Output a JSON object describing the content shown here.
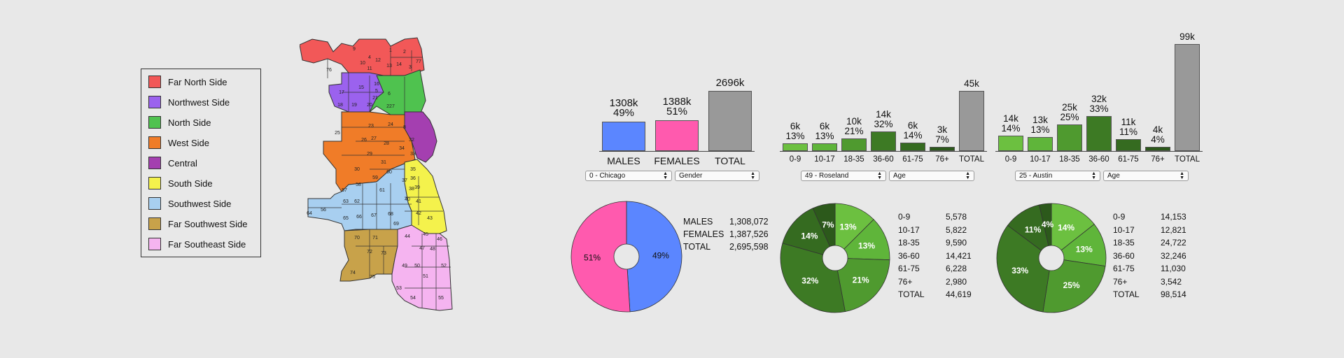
{
  "legend": {
    "items": [
      {
        "label": "Far North Side",
        "color": "#f25858"
      },
      {
        "label": "Northwest Side",
        "color": "#9b62ee"
      },
      {
        "label": "North Side",
        "color": "#4fc24f"
      },
      {
        "label": "West Side",
        "color": "#f07c28"
      },
      {
        "label": "Central",
        "color": "#a43fb0"
      },
      {
        "label": "South Side",
        "color": "#f4f24c"
      },
      {
        "label": "Southwest Side",
        "color": "#a8cff0"
      },
      {
        "label": "Far Southwest Side",
        "color": "#c8a24a"
      },
      {
        "label": "Far Southeast Side",
        "color": "#f5b4f0"
      }
    ]
  },
  "map": {
    "numbers": [
      "1",
      "2",
      "3",
      "4",
      "5",
      "6",
      "7",
      "8",
      "9",
      "10",
      "11",
      "12",
      "13",
      "14",
      "15",
      "16",
      "17",
      "18",
      "19",
      "20",
      "21",
      "22",
      "23",
      "24",
      "25",
      "26",
      "27",
      "28",
      "29",
      "30",
      "31",
      "32",
      "33",
      "34",
      "35",
      "36",
      "37",
      "38",
      "39",
      "40",
      "41",
      "42",
      "43",
      "44",
      "45",
      "46",
      "47",
      "48",
      "49",
      "50",
      "51",
      "52",
      "53",
      "54",
      "55",
      "56",
      "57",
      "58",
      "59",
      "60",
      "61",
      "62",
      "63",
      "64",
      "65",
      "66",
      "67",
      "68",
      "69",
      "70",
      "71",
      "72",
      "73",
      "74",
      "75",
      "76",
      "77"
    ]
  },
  "panels": [
    {
      "select_area": "0 - Chicago",
      "select_type": "Gender",
      "bars": [
        {
          "cat": "MALES",
          "value_label": "1308k",
          "pct": "49%",
          "value": 1308,
          "color": "#5b86ff"
        },
        {
          "cat": "FEMALES",
          "value_label": "1388k",
          "pct": "51%",
          "value": 1388,
          "color": "#ff5aae"
        },
        {
          "cat": "TOTAL",
          "value_label": "2696k",
          "pct": "",
          "value": 2696,
          "color": "#999999"
        }
      ],
      "table": [
        {
          "k": "MALES",
          "v": "1,308,072"
        },
        {
          "k": "FEMALES",
          "v": "1,387,526"
        },
        {
          "k": "TOTAL",
          "v": "2,695,598"
        }
      ],
      "pie": [
        {
          "value": 49,
          "label": "49%",
          "color": "#5b86ff"
        },
        {
          "value": 51,
          "label": "51%",
          "color": "#ff5aae"
        }
      ]
    },
    {
      "select_area": "49 - Roseland",
      "select_type": "Age",
      "bars": [
        {
          "cat": "0-9",
          "value_label": "6k",
          "pct": "13%",
          "value": 5578,
          "color": "#6cc040"
        },
        {
          "cat": "10-17",
          "value_label": "6k",
          "pct": "13%",
          "value": 5822,
          "color": "#5fb53a"
        },
        {
          "cat": "18-35",
          "value_label": "10k",
          "pct": "21%",
          "value": 9590,
          "color": "#4f9a2f"
        },
        {
          "cat": "36-60",
          "value_label": "14k",
          "pct": "32%",
          "value": 14421,
          "color": "#3d7a24"
        },
        {
          "cat": "61-75",
          "value_label": "6k",
          "pct": "14%",
          "value": 6228,
          "color": "#356b20"
        },
        {
          "cat": "76+",
          "value_label": "3k",
          "pct": "7%",
          "value": 2980,
          "color": "#2c591b"
        },
        {
          "cat": "TOTAL",
          "value_label": "45k",
          "pct": "",
          "value": 44619,
          "color": "#999999"
        }
      ],
      "table": [
        {
          "k": "0-9",
          "v": "5,578"
        },
        {
          "k": "10-17",
          "v": "5,822"
        },
        {
          "k": "18-35",
          "v": "9,590"
        },
        {
          "k": "36-60",
          "v": "14,421"
        },
        {
          "k": "61-75",
          "v": "6,228"
        },
        {
          "k": "76+",
          "v": "2,980"
        },
        {
          "k": "TOTAL",
          "v": "44,619"
        }
      ],
      "pie": [
        {
          "value": 5578,
          "label": "13%",
          "color": "#6cc040"
        },
        {
          "value": 5822,
          "label": "13%",
          "color": "#5fb53a"
        },
        {
          "value": 9590,
          "label": "21%",
          "color": "#4f9a2f"
        },
        {
          "value": 14421,
          "label": "32%",
          "color": "#3d7a24"
        },
        {
          "value": 6228,
          "label": "14%",
          "color": "#356b20"
        },
        {
          "value": 2980,
          "label": "7%",
          "color": "#2c591b"
        }
      ]
    },
    {
      "select_area": "25 - Austin",
      "select_type": "Age",
      "bars": [
        {
          "cat": "0-9",
          "value_label": "14k",
          "pct": "14%",
          "value": 14153,
          "color": "#6cc040"
        },
        {
          "cat": "10-17",
          "value_label": "13k",
          "pct": "13%",
          "value": 12821,
          "color": "#5fb53a"
        },
        {
          "cat": "18-35",
          "value_label": "25k",
          "pct": "25%",
          "value": 24722,
          "color": "#4f9a2f"
        },
        {
          "cat": "36-60",
          "value_label": "32k",
          "pct": "33%",
          "value": 32246,
          "color": "#3d7a24"
        },
        {
          "cat": "61-75",
          "value_label": "11k",
          "pct": "11%",
          "value": 11030,
          "color": "#356b20"
        },
        {
          "cat": "76+",
          "value_label": "4k",
          "pct": "4%",
          "value": 3542,
          "color": "#2c591b"
        },
        {
          "cat": "TOTAL",
          "value_label": "99k",
          "pct": "",
          "value": 98514,
          "color": "#999999"
        }
      ],
      "table": [
        {
          "k": "0-9",
          "v": "14,153"
        },
        {
          "k": "10-17",
          "v": "12,821"
        },
        {
          "k": "18-35",
          "v": "24,722"
        },
        {
          "k": "36-60",
          "v": "32,246"
        },
        {
          "k": "61-75",
          "v": "11,030"
        },
        {
          "k": "76+",
          "v": "3,542"
        },
        {
          "k": "TOTAL",
          "v": "98,514"
        }
      ],
      "pie": [
        {
          "value": 14153,
          "label": "14%",
          "color": "#6cc040"
        },
        {
          "value": 12821,
          "label": "13%",
          "color": "#5fb53a"
        },
        {
          "value": 24722,
          "label": "25%",
          "color": "#4f9a2f"
        },
        {
          "value": 32246,
          "label": "33%",
          "color": "#3d7a24"
        },
        {
          "value": 11030,
          "label": "11%",
          "color": "#356b20"
        },
        {
          "value": 3542,
          "label": "4%",
          "color": "#2c591b"
        }
      ]
    }
  ],
  "chart_data": [
    {
      "type": "bar",
      "categories": [
        "MALES",
        "FEMALES",
        "TOTAL"
      ],
      "values": [
        1308072,
        1387526,
        2695598
      ]
    },
    {
      "type": "pie",
      "categories": [
        "MALES",
        "FEMALES"
      ],
      "values": [
        1308072,
        1387526
      ]
    },
    {
      "type": "bar",
      "categories": [
        "0-9",
        "10-17",
        "18-35",
        "36-60",
        "61-75",
        "76+",
        "TOTAL"
      ],
      "values": [
        5578,
        5822,
        9590,
        14421,
        6228,
        2980,
        44619
      ]
    },
    {
      "type": "pie",
      "categories": [
        "0-9",
        "10-17",
        "18-35",
        "36-60",
        "61-75",
        "76+"
      ],
      "values": [
        5578,
        5822,
        9590,
        14421,
        6228,
        2980
      ]
    },
    {
      "type": "bar",
      "categories": [
        "0-9",
        "10-17",
        "18-35",
        "36-60",
        "61-75",
        "76+",
        "TOTAL"
      ],
      "values": [
        14153,
        12821,
        24722,
        32246,
        11030,
        3542,
        98514
      ]
    },
    {
      "type": "pie",
      "categories": [
        "0-9",
        "10-17",
        "18-35",
        "36-60",
        "61-75",
        "76+"
      ],
      "values": [
        14153,
        12821,
        24722,
        32246,
        11030,
        3542
      ]
    }
  ]
}
